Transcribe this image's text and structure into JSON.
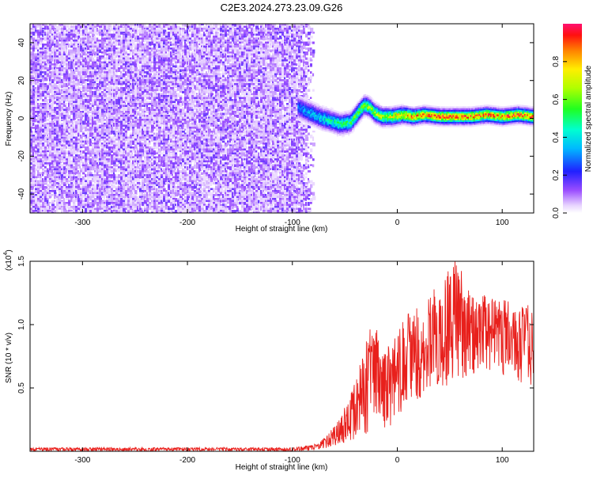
{
  "title": "C2E3.2024.273.23.09.G26",
  "colorbar": {
    "label": "Normalized spectral amplitude",
    "ticks": [
      "0.0",
      "0.2",
      "0.4",
      "0.6",
      "0.8"
    ],
    "tick_values": [
      0.0,
      0.2,
      0.4,
      0.6,
      0.8
    ],
    "range": [
      0,
      1
    ]
  },
  "chart_data": [
    {
      "type": "heatmap",
      "name": "spectrogram",
      "xlabel": "Height of straight line (km)",
      "ylabel": "Frequency (Hz)",
      "xlim": [
        -350,
        130
      ],
      "ylim": [
        -50,
        50
      ],
      "xticks": [
        -300,
        -200,
        -100,
        0,
        100
      ],
      "xtick_labels": [
        "-300",
        "-200",
        "-100",
        "0",
        "100"
      ],
      "yticks": [
        -40,
        -20,
        0,
        20,
        40
      ],
      "ytick_labels": [
        "-40",
        "-20",
        "0",
        "20",
        "40"
      ],
      "noise_region_x": [
        -350,
        -88
      ],
      "signal_start_x": -95,
      "signal_ridge": [
        {
          "x": -95,
          "f": 6
        },
        {
          "x": -88,
          "f": 4
        },
        {
          "x": -80,
          "f": 2
        },
        {
          "x": -72,
          "f": 0
        },
        {
          "x": -65,
          "f": -1
        },
        {
          "x": -55,
          "f": -3
        },
        {
          "x": -45,
          "f": -2
        },
        {
          "x": -38,
          "f": 3
        },
        {
          "x": -32,
          "f": 7
        },
        {
          "x": -27,
          "f": 6
        },
        {
          "x": -22,
          "f": 3
        },
        {
          "x": -15,
          "f": 1
        },
        {
          "x": -5,
          "f": 1
        },
        {
          "x": 5,
          "f": 2
        },
        {
          "x": 15,
          "f": 1
        },
        {
          "x": 25,
          "f": 2
        },
        {
          "x": 40,
          "f": 1
        },
        {
          "x": 55,
          "f": 1
        },
        {
          "x": 70,
          "f": 1
        },
        {
          "x": 85,
          "f": 2
        },
        {
          "x": 100,
          "f": 1
        },
        {
          "x": 115,
          "f": 2
        },
        {
          "x": 130,
          "f": 1
        }
      ],
      "signal_peak_amplitude": 0.9
    },
    {
      "type": "line",
      "name": "snr",
      "xlabel": "Height of straight line (km)",
      "ylabel": "SNR (10 * v/v)",
      "y_multiplier_label": "(x10",
      "y_multiplier_exponent": "4",
      "xlim": [
        -350,
        130
      ],
      "ylim": [
        0,
        1.5
      ],
      "xticks": [
        -300,
        -200,
        -100,
        0,
        100
      ],
      "xtick_labels": [
        "-300",
        "-200",
        "-100",
        "0",
        "100"
      ],
      "yticks": [
        0.5,
        1.0,
        1.5
      ],
      "ytick_labels": [
        "0.5",
        "1.0",
        "1.5"
      ],
      "series_color": "#e8201c",
      "envelope": [
        {
          "x": -350,
          "lo": 0.0,
          "hi": 0.03
        },
        {
          "x": -100,
          "lo": 0.0,
          "hi": 0.03
        },
        {
          "x": -75,
          "lo": 0.01,
          "hi": 0.06
        },
        {
          "x": -55,
          "lo": 0.05,
          "hi": 0.25
        },
        {
          "x": -40,
          "lo": 0.1,
          "hi": 0.55
        },
        {
          "x": -25,
          "lo": 0.15,
          "hi": 1.0
        },
        {
          "x": -5,
          "lo": 0.2,
          "hi": 0.85
        },
        {
          "x": 10,
          "lo": 0.35,
          "hi": 1.1
        },
        {
          "x": 30,
          "lo": 0.45,
          "hi": 1.25
        },
        {
          "x": 55,
          "lo": 0.55,
          "hi": 1.5
        },
        {
          "x": 75,
          "lo": 0.6,
          "hi": 1.25
        },
        {
          "x": 100,
          "lo": 0.6,
          "hi": 1.2
        },
        {
          "x": 130,
          "lo": 0.5,
          "hi": 1.15
        }
      ],
      "peak": {
        "x": 55,
        "y": 1.5
      }
    }
  ]
}
